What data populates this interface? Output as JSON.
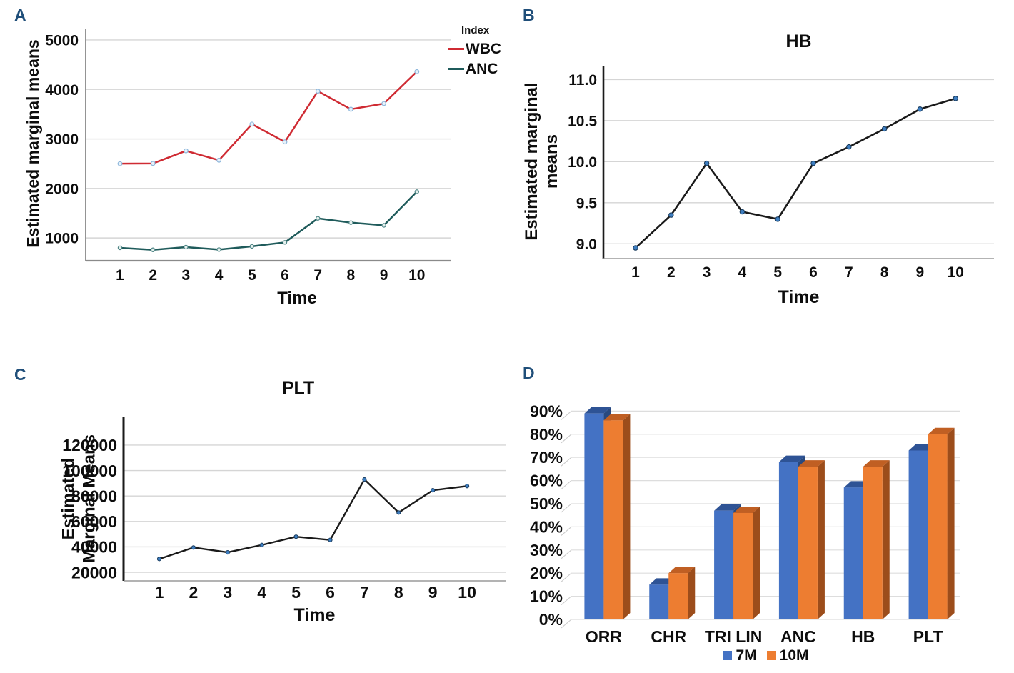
{
  "figure": {
    "panels": {
      "a": {
        "label": "A"
      },
      "b": {
        "label": "B"
      },
      "c": {
        "label": "C"
      },
      "d": {
        "label": "D"
      }
    }
  },
  "chart_data": [
    {
      "id": "A",
      "type": "line",
      "title": "",
      "ylabel": "Estimated marginal means",
      "xlabel": "Time",
      "x": [
        1,
        2,
        3,
        4,
        5,
        6,
        7,
        8,
        9,
        10
      ],
      "ytick_values": [
        1000,
        2000,
        3000,
        4000,
        5000
      ],
      "ytick_labels": [
        "1000",
        "2000",
        "3000",
        "4000",
        "5000"
      ],
      "ylim": [
        540,
        5230
      ],
      "grid": true,
      "legend_title": "Index",
      "legend_position": "top-right-outside",
      "series": [
        {
          "name": "WBC",
          "color": "#CF2B33",
          "values": [
            2500,
            2505,
            2760,
            2570,
            3300,
            2940,
            3965,
            3600,
            3715,
            4360
          ]
        },
        {
          "name": "ANC",
          "color": "#1F5B5B",
          "values": [
            800,
            760,
            815,
            765,
            830,
            910,
            1395,
            1310,
            1255,
            1935
          ]
        }
      ]
    },
    {
      "id": "B",
      "type": "line",
      "title": "HB",
      "ylabel": "Estimated marginal\nmeans",
      "xlabel": "Time",
      "x": [
        1,
        2,
        3,
        4,
        5,
        6,
        7,
        8,
        9,
        10
      ],
      "ytick_values": [
        9.0,
        9.5,
        10.0,
        10.5,
        11.0
      ],
      "ytick_labels": [
        "9.0",
        "9.5",
        "10.0",
        "10.5",
        "11.0"
      ],
      "ylim": [
        8.82,
        11.16
      ],
      "grid": true,
      "series": [
        {
          "name": "HB",
          "color": "#1A1A1A",
          "values": [
            8.95,
            9.35,
            9.98,
            9.39,
            9.3,
            9.98,
            10.18,
            10.4,
            10.64,
            10.77
          ]
        }
      ]
    },
    {
      "id": "C",
      "type": "line",
      "title": "PLT",
      "ylabel": "Estimated\nMarginal Means",
      "xlabel": "Time",
      "x": [
        1,
        2,
        3,
        4,
        5,
        6,
        7,
        8,
        9,
        10
      ],
      "ytick_values": [
        20000,
        40000,
        60000,
        80000,
        100000,
        120000
      ],
      "ytick_labels": [
        "20000",
        "40000",
        "60000",
        "80000",
        "100000",
        "120000"
      ],
      "ylim": [
        13300,
        142400
      ],
      "grid": true,
      "series": [
        {
          "name": "PLT",
          "color": "#1A1A1A",
          "values": [
            30500,
            39500,
            35700,
            41500,
            48000,
            45500,
            93000,
            67000,
            84500,
            87800
          ]
        }
      ]
    },
    {
      "id": "D",
      "type": "bar",
      "effect": "3d",
      "title": "",
      "categories": [
        "ORR",
        "CHR",
        "TRI LIN",
        "ANC",
        "HB",
        "PLT"
      ],
      "ytick_values": [
        0,
        10,
        20,
        30,
        40,
        50,
        60,
        70,
        80,
        90
      ],
      "ytick_labels": [
        "0%",
        "10%",
        "20%",
        "30%",
        "40%",
        "50%",
        "60%",
        "70%",
        "80%",
        "90%"
      ],
      "ylim": [
        0,
        93
      ],
      "grid": true,
      "legend_position": "bottom-center",
      "series": [
        {
          "name": "7M",
          "color": "#4472C4",
          "values": [
            89,
            15,
            47,
            68,
            57,
            73
          ]
        },
        {
          "name": "10M",
          "color": "#ED7D31",
          "values": [
            86,
            20,
            46,
            66,
            66,
            80
          ]
        }
      ]
    }
  ]
}
